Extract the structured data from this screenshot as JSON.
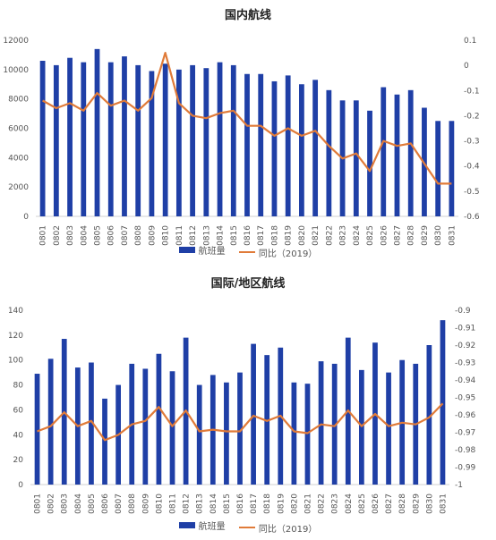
{
  "chart_data": [
    {
      "type": "bar",
      "title": "国内航线",
      "categories": [
        "0801",
        "0802",
        "0803",
        "0804",
        "0805",
        "0806",
        "0807",
        "0808",
        "0809",
        "0810",
        "0811",
        "0812",
        "0813",
        "0814",
        "0815",
        "0816",
        "0817",
        "0818",
        "0819",
        "0820",
        "0821",
        "0822",
        "0823",
        "0824",
        "0825",
        "0826",
        "0827",
        "0828",
        "0829",
        "0830",
        "0831"
      ],
      "series": [
        {
          "name": "航班量",
          "kind": "bar",
          "axis": "left",
          "values": [
            10600,
            10300,
            10800,
            10500,
            11400,
            10500,
            10900,
            10300,
            9900,
            10400,
            10000,
            10300,
            10100,
            10500,
            10300,
            9700,
            9700,
            9200,
            9600,
            9000,
            9300,
            8600,
            7900,
            7900,
            7200,
            8800,
            8300,
            8600,
            7400,
            6500,
            6500
          ]
        },
        {
          "name": "同比（2019）",
          "kind": "line",
          "axis": "right",
          "values": [
            -0.14,
            -0.17,
            -0.15,
            -0.18,
            -0.11,
            -0.16,
            -0.14,
            -0.18,
            -0.13,
            0.05,
            -0.15,
            -0.2,
            -0.21,
            -0.19,
            -0.18,
            -0.24,
            -0.24,
            -0.28,
            -0.25,
            -0.28,
            -0.26,
            -0.32,
            -0.37,
            -0.35,
            -0.42,
            -0.3,
            -0.32,
            -0.31,
            -0.39,
            -0.47,
            -0.47
          ]
        }
      ],
      "y_left": {
        "min": 0,
        "max": 12000,
        "ticks": [
          "0",
          "2000",
          "4000",
          "6000",
          "8000",
          "10000",
          "12000"
        ]
      },
      "y_right": {
        "min": -0.6,
        "max": 0.1,
        "ticks": [
          "-0.6",
          "-0.5",
          "-0.4",
          "-0.3",
          "-0.2",
          "-0.1",
          "0",
          "0.1"
        ]
      },
      "legend": "bottom",
      "colors": {
        "bar": "#1f3fa6",
        "line": "#e07b39"
      }
    },
    {
      "type": "bar",
      "title": "国际/地区航线",
      "categories": [
        "0801",
        "0802",
        "0803",
        "0804",
        "0805",
        "0806",
        "0807",
        "0808",
        "0809",
        "0810",
        "0811",
        "0812",
        "0813",
        "0814",
        "0815",
        "0816",
        "0817",
        "0818",
        "0819",
        "0820",
        "0821",
        "0822",
        "0823",
        "0824",
        "0825",
        "0826",
        "0827",
        "0828",
        "0829",
        "0830",
        "0831"
      ],
      "series": [
        {
          "name": "航班量",
          "kind": "bar",
          "axis": "left",
          "values": [
            89,
            101,
            117,
            94,
            98,
            69,
            80,
            97,
            93,
            105,
            91,
            118,
            80,
            88,
            82,
            90,
            113,
            104,
            110,
            82,
            81,
            99,
            97,
            118,
            92,
            114,
            90,
            100,
            97,
            112,
            132
          ]
        },
        {
          "name": "同比（2019）",
          "kind": "line",
          "axis": "right",
          "values": [
            -0.9695,
            -0.9665,
            -0.9585,
            -0.9665,
            -0.9635,
            -0.9745,
            -0.9715,
            -0.9655,
            -0.9635,
            -0.9555,
            -0.9665,
            -0.9575,
            -0.9695,
            -0.9685,
            -0.9695,
            -0.9695,
            -0.9605,
            -0.9635,
            -0.9605,
            -0.9695,
            -0.9705,
            -0.9655,
            -0.9665,
            -0.9575,
            -0.9665,
            -0.9595,
            -0.9665,
            -0.9645,
            -0.9655,
            -0.9615,
            -0.9535
          ]
        }
      ],
      "y_left": {
        "min": 0,
        "max": 140,
        "ticks": [
          "0",
          "20",
          "40",
          "60",
          "80",
          "100",
          "120",
          "140"
        ]
      },
      "y_right": {
        "min": -1,
        "max": -0.9,
        "ticks": [
          "-1",
          "-0.99",
          "-0.98",
          "-0.97",
          "-0.96",
          "-0.95",
          "-0.94",
          "-0.93",
          "-0.92",
          "-0.91",
          "-0.9"
        ]
      },
      "legend": "bottom",
      "colors": {
        "bar": "#1f3fa6",
        "line": "#e07b39"
      }
    }
  ]
}
